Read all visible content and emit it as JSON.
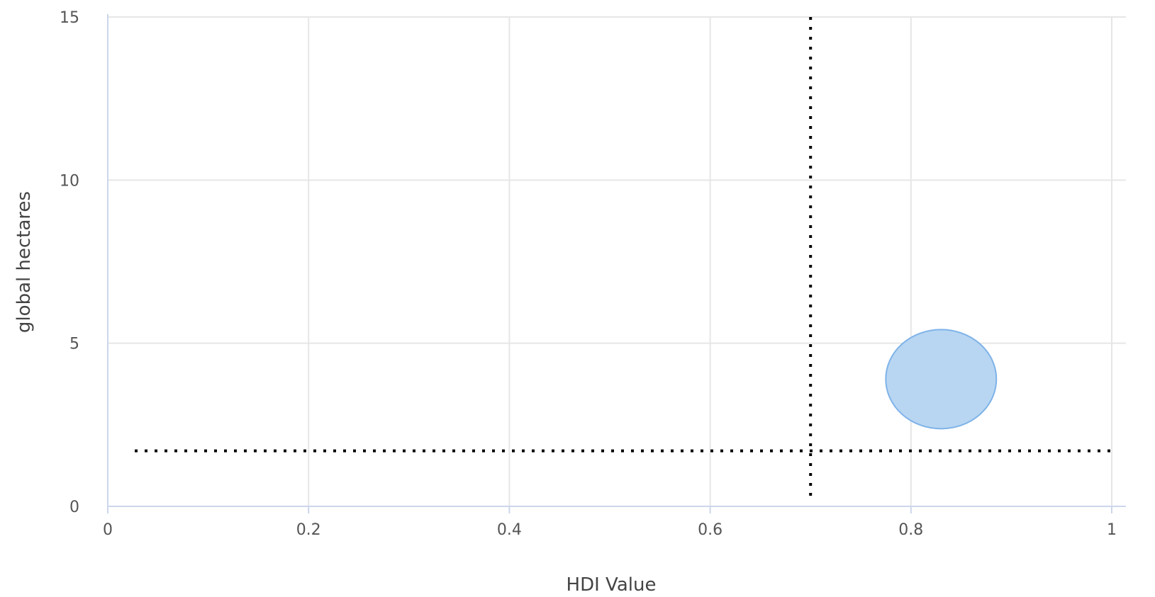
{
  "chart_data": {
    "type": "scatter",
    "title": "",
    "xlabel": "HDI Value",
    "ylabel": "global hectares",
    "xlim": [
      0,
      1
    ],
    "ylim": [
      0,
      15
    ],
    "x_ticks": [
      "0",
      "0.2",
      "0.4",
      "0.6",
      "0.8",
      "1"
    ],
    "y_ticks": [
      "0",
      "5",
      "10",
      "15"
    ],
    "grid": true,
    "series": [
      {
        "points": [
          {
            "x": 0.83,
            "y": 3.9,
            "style": "bubble"
          }
        ]
      }
    ],
    "reference_lines": [
      {
        "axis": "x",
        "value": 0.7,
        "style": "dotted"
      },
      {
        "axis": "y",
        "value": 1.7,
        "style": "dotted"
      }
    ],
    "colors": {
      "bubble_fill": "#b8d6f2",
      "bubble_stroke": "#7fb3e8",
      "grid": "#e6e6e6",
      "axis": "#ccd6eb",
      "reference": "#000000"
    }
  }
}
